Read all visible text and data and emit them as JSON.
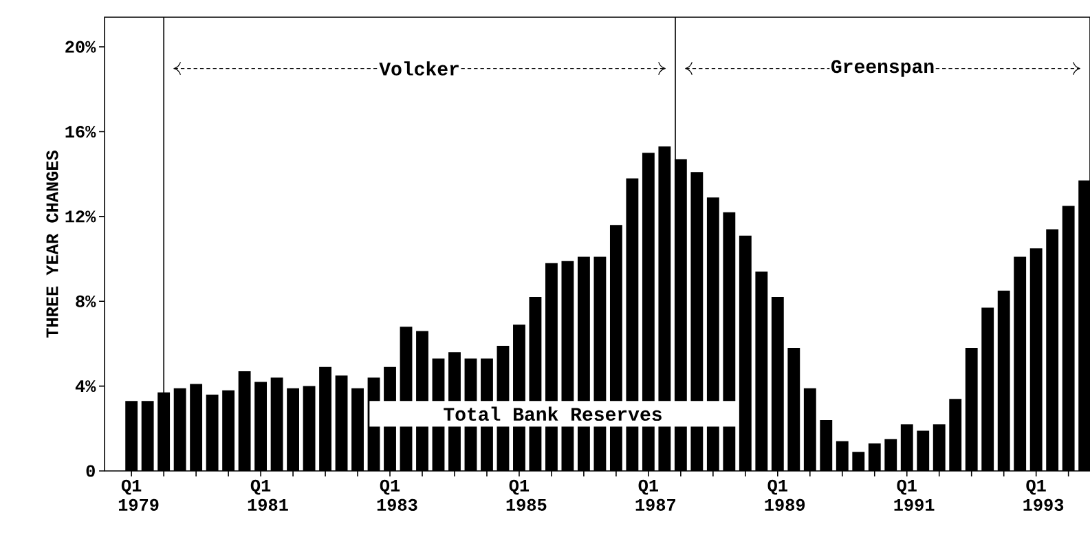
{
  "chart_data": {
    "type": "bar",
    "title": "Total Bank Reserves",
    "ylabel": "THREE YEAR CHANGES",
    "annotations": [
      "Volcker",
      "Greenspan"
    ],
    "x": [
      "1979-01",
      "1979-04",
      "1979-07",
      "1979-10",
      "1980-01",
      "1980-04",
      "1980-07",
      "1980-10",
      "1981-01",
      "1981-04",
      "1981-07",
      "1981-10",
      "1982-01",
      "1982-04",
      "1982-07",
      "1982-10",
      "1983-01",
      "1983-04",
      "1983-07",
      "1983-10",
      "1984-01",
      "1984-04",
      "1984-07",
      "1984-10",
      "1985-01",
      "1985-04",
      "1985-07",
      "1985-10",
      "1986-01",
      "1986-04",
      "1986-07",
      "1986-10",
      "1987-01",
      "1987-04",
      "1987-07",
      "1987-10",
      "1988-01",
      "1988-04",
      "1988-07",
      "1988-10",
      "1989-01",
      "1989-04",
      "1989-07",
      "1989-10",
      "1990-01",
      "1990-04",
      "1990-07",
      "1990-10",
      "1991-01",
      "1991-04",
      "1991-07",
      "1991-10",
      "1992-01",
      "1992-04",
      "1992-07",
      "1992-10",
      "1993-01",
      "1993-04",
      "1993-07",
      "1993-10"
    ],
    "values": [
      3.3,
      3.3,
      3.7,
      3.9,
      4.1,
      3.6,
      3.8,
      4.7,
      4.2,
      4.4,
      3.9,
      4.0,
      4.9,
      4.5,
      3.9,
      4.4,
      4.9,
      6.8,
      6.6,
      5.3,
      5.6,
      5.3,
      5.3,
      5.9,
      6.9,
      8.2,
      9.8,
      9.9,
      10.1,
      10.1,
      11.6,
      13.8,
      15.0,
      15.3,
      14.7,
      14.1,
      12.9,
      12.2,
      11.1,
      9.4,
      8.2,
      5.8,
      3.9,
      2.4,
      1.4,
      0.9,
      1.3,
      1.5,
      2.2,
      1.9,
      2.2,
      3.4,
      5.8,
      7.7,
      8.5,
      10.1,
      10.5,
      11.4,
      12.5,
      13.7
    ],
    "color": "#000000",
    "xlim": [
      "1978-08",
      "1993-11"
    ],
    "xticks": [
      {
        "value": "1979-01",
        "label": "Q1 1979"
      },
      {
        "value": "1979-07",
        "label": null
      },
      {
        "value": "1980-01",
        "label": null
      },
      {
        "value": "1980-07",
        "label": null
      },
      {
        "value": "1981-01",
        "label": "Q1 1981"
      },
      {
        "value": "1981-07",
        "label": null
      },
      {
        "value": "1982-01",
        "label": null
      },
      {
        "value": "1982-07",
        "label": null
      },
      {
        "value": "1983-01",
        "label": "Q1 1983"
      },
      {
        "value": "1983-07",
        "label": null
      },
      {
        "value": "1984-01",
        "label": null
      },
      {
        "value": "1984-07",
        "label": null
      },
      {
        "value": "1985-01",
        "label": "Q1 1985"
      },
      {
        "value": "1985-07",
        "label": null
      },
      {
        "value": "1986-01",
        "label": null
      },
      {
        "value": "1986-07",
        "label": null
      },
      {
        "value": "1987-01",
        "label": "Q1 1987"
      },
      {
        "value": "1987-07",
        "label": null
      },
      {
        "value": "1988-01",
        "label": null
      },
      {
        "value": "1988-07",
        "label": null
      },
      {
        "value": "1989-01",
        "label": "Q1 1989"
      },
      {
        "value": "1989-07",
        "label": null
      },
      {
        "value": "1990-01",
        "label": null
      },
      {
        "value": "1990-07",
        "label": null
      },
      {
        "value": "1991-01",
        "label": "Q1 1991"
      },
      {
        "value": "1991-07",
        "label": null
      },
      {
        "value": "1992-01",
        "label": null
      },
      {
        "value": "1992-07",
        "label": null
      },
      {
        "value": "1993-01",
        "label": "Q1 1993"
      },
      {
        "value": "1993-07",
        "label": null
      }
    ],
    "ylim": [
      0,
      21.4
    ],
    "yticks": [
      0,
      {
        "value": 4,
        "label": "4%"
      },
      {
        "value": 8,
        "label": "8%"
      },
      {
        "value": 12,
        "label": "12%"
      },
      {
        "value": 16,
        "label": "16%"
      },
      {
        "value": 20,
        "label": "20%"
      }
    ],
    "ref_lines": [
      {
        "axis": "x",
        "value": "1979-07"
      },
      {
        "axis": "x",
        "value": "1987-06"
      }
    ],
    "grid": false
  }
}
